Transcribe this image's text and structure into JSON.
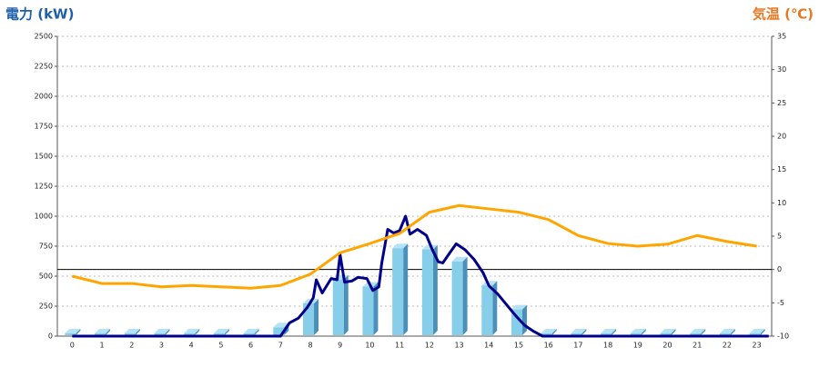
{
  "chart_data": {
    "type": "bar",
    "y_label": "電力 (kW)",
    "y2_label": "気温 (℃)",
    "categories": [
      "0",
      "1",
      "2",
      "3",
      "4",
      "5",
      "6",
      "7",
      "8",
      "9",
      "10",
      "11",
      "12",
      "13",
      "14",
      "15",
      "16",
      "17",
      "18",
      "19",
      "20",
      "21",
      "22",
      "23"
    ],
    "ylim": [
      0,
      2500
    ],
    "yticks": [
      0,
      250,
      500,
      750,
      1000,
      1250,
      1500,
      1750,
      2000,
      2250,
      2500
    ],
    "y2lim": [
      -10,
      35
    ],
    "y2ticks": [
      -10,
      -5,
      0,
      5,
      10,
      15,
      20,
      25,
      30,
      35
    ],
    "grid": true,
    "y2_zero_line": true,
    "series": [
      {
        "type": "bar",
        "color": "#87ceeb",
        "values": [
          0,
          0,
          0,
          0,
          0,
          0,
          0,
          50,
          250,
          450,
          390,
          710,
          700,
          600,
          400,
          200,
          0,
          0,
          0,
          0,
          0,
          0,
          0,
          0
        ]
      },
      {
        "type": "line",
        "color": "#00008b",
        "x": [
          0,
          7,
          7.3,
          7.6,
          7.9,
          8.1,
          8.2,
          8.4,
          8.7,
          8.9,
          9.0,
          9.15,
          9.4,
          9.6,
          9.9,
          10.1,
          10.3,
          10.4,
          10.6,
          10.8,
          11.0,
          11.2,
          11.35,
          11.6,
          11.9,
          12.1,
          12.3,
          12.45,
          12.7,
          12.9,
          13.2,
          13.5,
          13.8,
          14.0,
          14.3,
          14.6,
          14.9,
          15.2,
          15.5,
          15.8,
          23.4
        ],
        "values": [
          0,
          0,
          110,
          150,
          240,
          320,
          470,
          360,
          480,
          470,
          680,
          450,
          460,
          490,
          480,
          380,
          410,
          610,
          890,
          860,
          880,
          1000,
          850,
          890,
          840,
          720,
          620,
          610,
          700,
          770,
          720,
          640,
          530,
          420,
          350,
          260,
          170,
          90,
          40,
          0,
          0
        ]
      },
      {
        "type": "line",
        "axis": "y2",
        "color": "#ffa500",
        "values": [
          -1.0,
          -2.1,
          -2.1,
          -2.6,
          -2.4,
          -2.6,
          -2.8,
          -2.4,
          -0.7,
          2.5,
          3.9,
          5.4,
          8.6,
          9.6,
          9.1,
          8.6,
          7.5,
          5.1,
          3.9,
          3.5,
          3.8,
          5.1,
          4.2,
          3.5
        ]
      }
    ]
  }
}
